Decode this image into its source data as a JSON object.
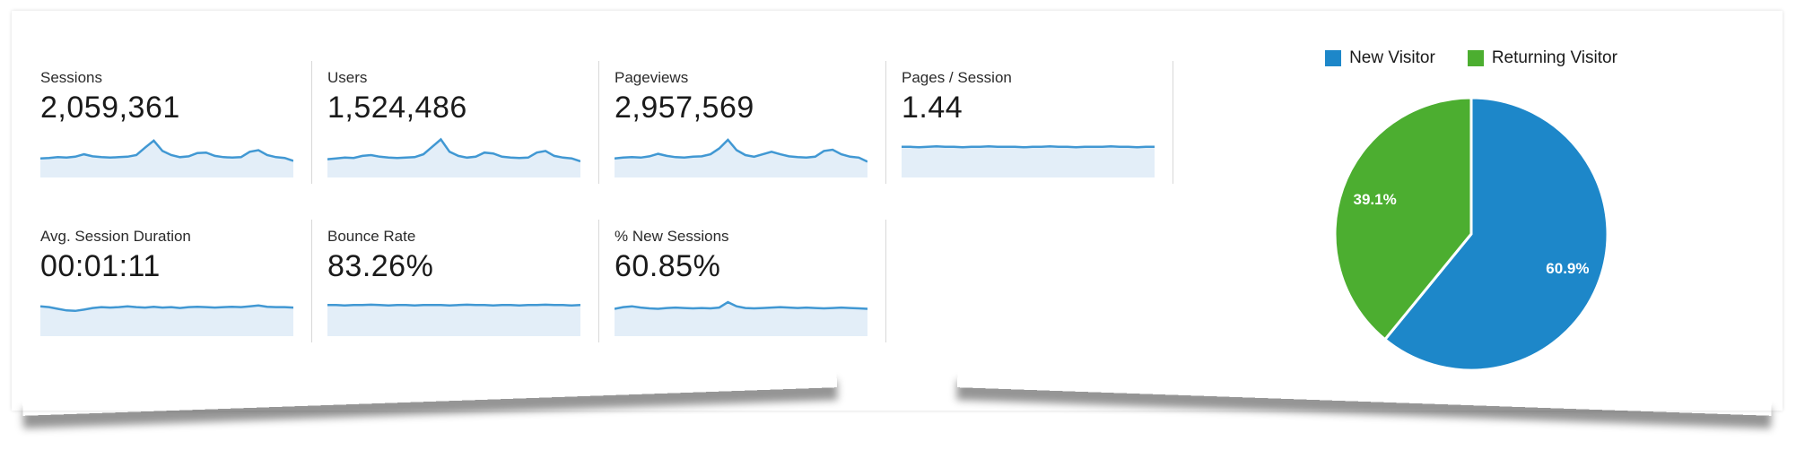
{
  "panel": {
    "name": "analytics-overview-panel"
  },
  "metrics": {
    "rows": [
      [
        {
          "label": "Sessions",
          "value": "2,059,361",
          "sparkline": "sessions"
        },
        {
          "label": "Users",
          "value": "1,524,486",
          "sparkline": "users"
        },
        {
          "label": "Pageviews",
          "value": "2,957,569",
          "sparkline": "pageviews"
        },
        {
          "label": "Pages / Session",
          "value": "1.44",
          "sparkline": "pages_per_session"
        }
      ],
      [
        {
          "label": "Avg. Session Duration",
          "value": "00:01:11",
          "sparkline": "avg_session_duration"
        },
        {
          "label": "Bounce Rate",
          "value": "83.26%",
          "sparkline": "bounce_rate"
        },
        {
          "label": "% New Sessions",
          "value": "60.85%",
          "sparkline": "pct_new_sessions"
        }
      ]
    ]
  },
  "colors": {
    "sparkline_line": "#4198d3",
    "sparkline_fill": "#e3eef8",
    "divider": "#d8d8d8",
    "pie_blue": "#1d87c9",
    "pie_green": "#4cae30",
    "pie_label_text": "#ffffff"
  },
  "chart_data": [
    {
      "type": "pie",
      "key": "visitor_type_pie",
      "direction": "clockwise",
      "start_angle_deg": 0,
      "legend_position": "top",
      "data_labels": "inside",
      "slices": [
        {
          "label": "New Visitor",
          "value": 60.9,
          "display_label": "60.9%",
          "color": "#1d87c9"
        },
        {
          "label": "Returning Visitor",
          "value": 39.1,
          "display_label": "39.1%",
          "color": "#4cae30"
        }
      ]
    },
    {
      "type": "area",
      "key": "sessions",
      "metric": "Sessions",
      "axes": "none",
      "values_normalized": [
        0.42,
        0.43,
        0.45,
        0.44,
        0.46,
        0.52,
        0.47,
        0.45,
        0.44,
        0.45,
        0.46,
        0.5,
        0.68,
        0.85,
        0.6,
        0.5,
        0.45,
        0.47,
        0.55,
        0.56,
        0.48,
        0.45,
        0.44,
        0.45,
        0.58,
        0.62,
        0.5,
        0.45,
        0.43,
        0.36
      ]
    },
    {
      "type": "area",
      "key": "users",
      "metric": "Users",
      "axes": "none",
      "values_normalized": [
        0.4,
        0.42,
        0.44,
        0.43,
        0.48,
        0.5,
        0.46,
        0.44,
        0.43,
        0.44,
        0.45,
        0.52,
        0.7,
        0.88,
        0.58,
        0.48,
        0.44,
        0.46,
        0.56,
        0.54,
        0.46,
        0.44,
        0.43,
        0.44,
        0.56,
        0.6,
        0.48,
        0.44,
        0.42,
        0.35
      ]
    },
    {
      "type": "area",
      "key": "pageviews",
      "metric": "Pageviews",
      "axes": "none",
      "values_normalized": [
        0.42,
        0.44,
        0.45,
        0.44,
        0.47,
        0.53,
        0.48,
        0.45,
        0.44,
        0.46,
        0.47,
        0.52,
        0.66,
        0.87,
        0.62,
        0.5,
        0.46,
        0.52,
        0.58,
        0.52,
        0.47,
        0.45,
        0.44,
        0.46,
        0.6,
        0.63,
        0.52,
        0.46,
        0.44,
        0.34
      ]
    },
    {
      "type": "area",
      "key": "pages_per_session",
      "metric": "Pages / Session",
      "axes": "none",
      "values_normalized": [
        0.7,
        0.7,
        0.69,
        0.7,
        0.71,
        0.7,
        0.7,
        0.69,
        0.7,
        0.7,
        0.71,
        0.7,
        0.7,
        0.7,
        0.69,
        0.7,
        0.7,
        0.71,
        0.7,
        0.7,
        0.69,
        0.7,
        0.7,
        0.7,
        0.71,
        0.7,
        0.7,
        0.69,
        0.7,
        0.7
      ]
    },
    {
      "type": "area",
      "key": "avg_session_duration",
      "metric": "Avg. Session Duration",
      "axes": "none",
      "values_normalized": [
        0.68,
        0.66,
        0.62,
        0.58,
        0.57,
        0.6,
        0.64,
        0.66,
        0.65,
        0.66,
        0.68,
        0.66,
        0.65,
        0.67,
        0.65,
        0.66,
        0.64,
        0.66,
        0.67,
        0.66,
        0.65,
        0.66,
        0.67,
        0.66,
        0.68,
        0.7,
        0.67,
        0.66,
        0.66,
        0.65
      ]
    },
    {
      "type": "area",
      "key": "bounce_rate",
      "metric": "Bounce Rate",
      "axes": "none",
      "values_normalized": [
        0.71,
        0.71,
        0.7,
        0.71,
        0.71,
        0.72,
        0.71,
        0.7,
        0.71,
        0.71,
        0.7,
        0.71,
        0.71,
        0.71,
        0.7,
        0.71,
        0.72,
        0.71,
        0.71,
        0.7,
        0.71,
        0.71,
        0.7,
        0.71,
        0.71,
        0.72,
        0.71,
        0.71,
        0.7,
        0.71
      ]
    },
    {
      "type": "area",
      "key": "pct_new_sessions",
      "metric": "% New Sessions",
      "axes": "none",
      "values_normalized": [
        0.62,
        0.66,
        0.68,
        0.65,
        0.63,
        0.62,
        0.64,
        0.65,
        0.64,
        0.63,
        0.64,
        0.63,
        0.65,
        0.78,
        0.68,
        0.64,
        0.63,
        0.64,
        0.65,
        0.66,
        0.65,
        0.64,
        0.65,
        0.64,
        0.63,
        0.64,
        0.65,
        0.64,
        0.63,
        0.62
      ]
    }
  ]
}
